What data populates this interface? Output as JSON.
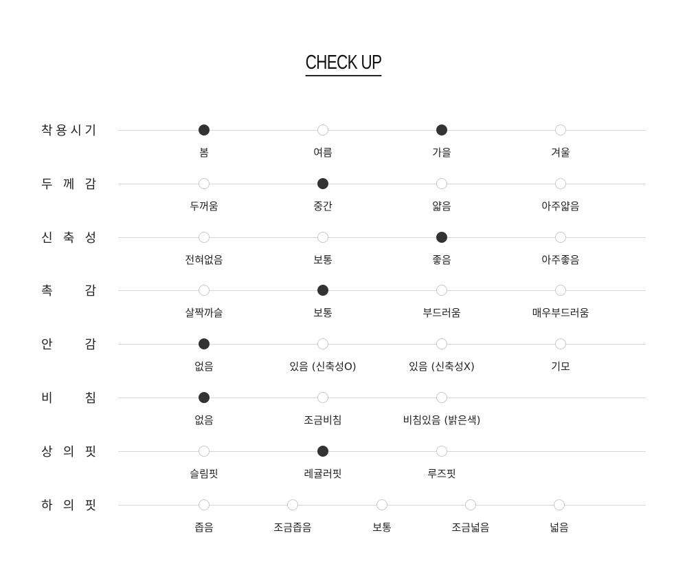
{
  "title": "CHECK UP",
  "colors": {
    "selected": "#333333",
    "unselected_border": "#c8c8c8",
    "track": "#d6d6d6"
  },
  "rows": [
    {
      "label": [
        "착",
        "용",
        "시",
        "기"
      ],
      "options": [
        "봄",
        "여름",
        "가을",
        "겨울"
      ],
      "selected": [
        0,
        2
      ]
    },
    {
      "label": [
        "두",
        "께",
        "감"
      ],
      "options": [
        "두꺼움",
        "중간",
        "얇음",
        "아주얇음"
      ],
      "selected": [
        1
      ]
    },
    {
      "label": [
        "신",
        "축",
        "성"
      ],
      "options": [
        "전혀없음",
        "보통",
        "좋음",
        "아주좋음"
      ],
      "selected": [
        2
      ]
    },
    {
      "label": [
        "촉",
        "감"
      ],
      "options": [
        "살짝까슬",
        "보통",
        "부드러움",
        "매우부드러움"
      ],
      "selected": [
        1
      ]
    },
    {
      "label": [
        "안",
        "감"
      ],
      "options": [
        "없음",
        "있음 (신축성O)",
        "있음 (신축성X)",
        "기모"
      ],
      "selected": [
        0
      ]
    },
    {
      "label": [
        "비",
        "침"
      ],
      "options": [
        "없음",
        "조금비침",
        "비침있음 (밝은색)"
      ],
      "selected": [
        0
      ]
    },
    {
      "label": [
        "상",
        "의",
        "핏"
      ],
      "options": [
        "슬림핏",
        "레귤러핏",
        "루즈핏"
      ],
      "selected": [
        1
      ]
    },
    {
      "label": [
        "하",
        "의",
        "핏"
      ],
      "options": [
        "좁음",
        "조금좁음",
        "보통",
        "조금넓음",
        "넓음"
      ],
      "selected": []
    }
  ]
}
